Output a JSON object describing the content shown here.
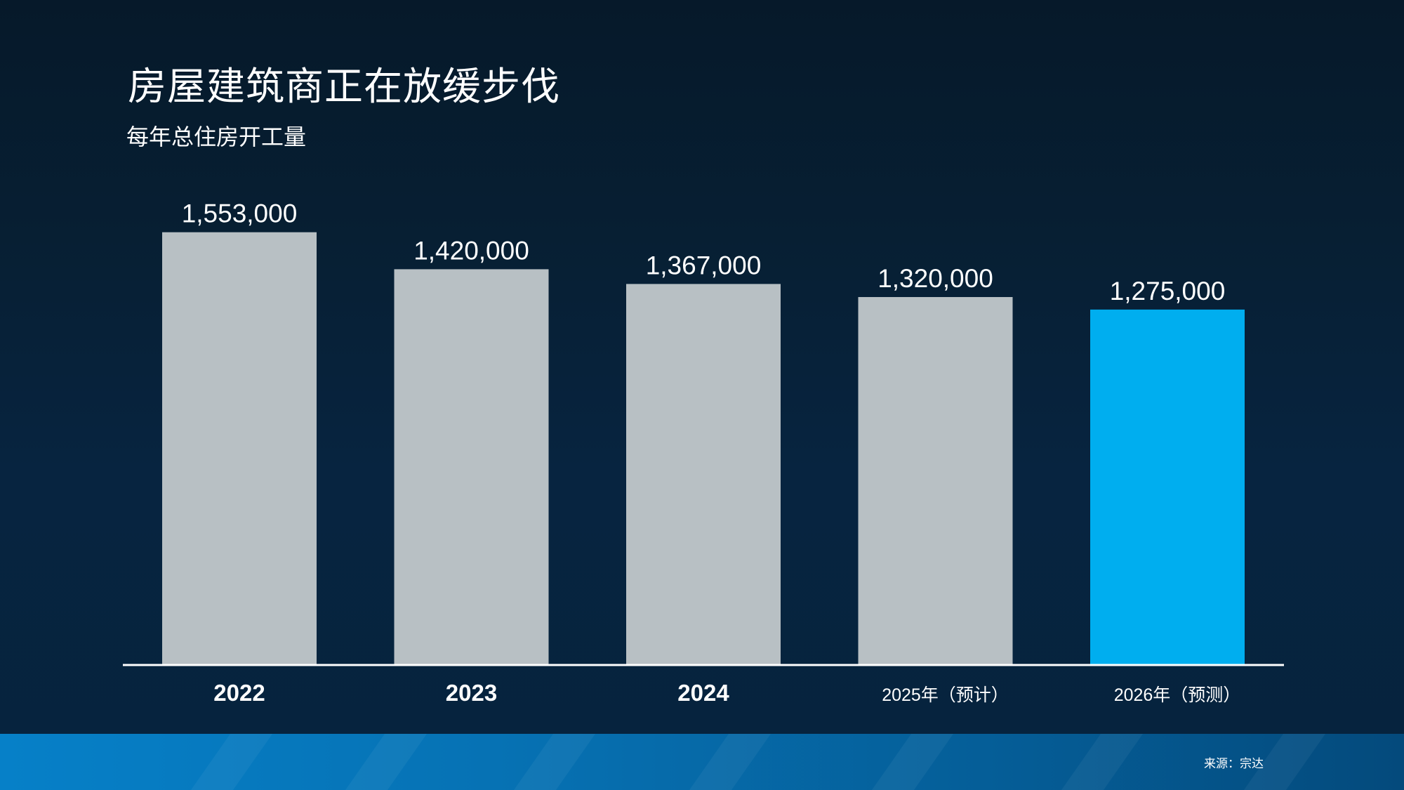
{
  "title": "房屋建筑商正在放缓步伐",
  "subtitle": "每年总住房开工量",
  "source": "来源：宗达",
  "colors": {
    "bar_default": "#b8c0c4",
    "bar_highlight": "#00aeef",
    "axis_line": "#ffffff",
    "label_text": "#ffffff"
  },
  "chart_data": {
    "type": "bar",
    "categories": [
      "2022",
      "2023",
      "2024",
      "2025年（预计）",
      "2026年（预测）"
    ],
    "values": [
      1553000,
      1420000,
      1367000,
      1320000,
      1275000
    ],
    "value_labels": [
      "1,553,000",
      "1,420,000",
      "1,367,000",
      "1,320,000",
      "1,275,000"
    ],
    "highlight_index": 4,
    "ylim": [
      0,
      1580000
    ],
    "grid": false,
    "legend": "none",
    "xlabel": "",
    "ylabel": ""
  }
}
